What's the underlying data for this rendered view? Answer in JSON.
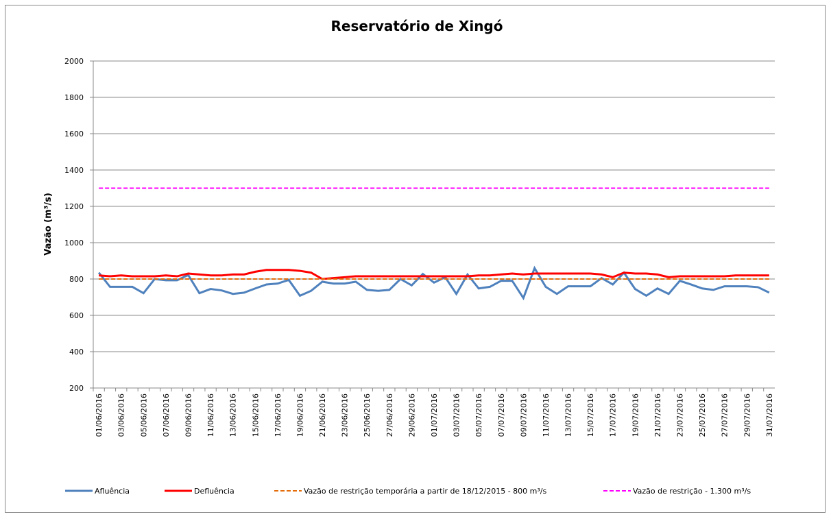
{
  "chart_data": {
    "type": "line",
    "title": "Reservatório de Xingó",
    "ylabel": "Vazão (m³/s)",
    "categories": [
      "01/06/2016",
      null,
      "03/06/2016",
      null,
      "05/06/2016",
      null,
      "07/06/2016",
      null,
      "09/06/2016",
      null,
      "11/06/2016",
      null,
      "13/06/2016",
      null,
      "15/06/2016",
      null,
      "17/06/2016",
      null,
      "19/06/2016",
      null,
      "21/06/2016",
      null,
      "23/06/2016",
      null,
      "25/06/2016",
      null,
      "27/06/2016",
      null,
      "29/06/2016",
      null,
      "01/07/2016",
      null,
      "03/07/2016",
      null,
      "05/07/2016",
      null,
      "07/07/2016",
      null,
      "09/07/2016",
      null,
      "11/07/2016",
      null,
      "13/07/2016",
      null,
      "15/07/2016",
      null,
      "17/07/2016",
      null,
      "19/07/2016",
      null,
      "21/07/2016",
      null,
      "23/07/2016",
      null,
      "25/07/2016",
      null,
      "27/07/2016",
      null,
      "29/07/2016",
      null,
      "31/07/2016"
    ],
    "series": [
      {
        "name": "Afluência",
        "color": "#4f81bd",
        "dashed": false,
        "values": [
          835,
          757,
          757,
          757,
          722,
          800,
          793,
          793,
          822,
          722,
          745,
          737,
          718,
          725,
          748,
          770,
          775,
          795,
          708,
          735,
          785,
          775,
          775,
          785,
          740,
          735,
          740,
          800,
          765,
          828,
          780,
          810,
          718,
          825,
          748,
          757,
          790,
          790,
          695,
          860,
          757,
          718,
          760,
          760,
          760,
          805,
          770,
          835,
          745,
          708,
          748,
          718,
          790,
          770,
          748,
          740,
          760,
          760,
          760,
          755,
          725
        ]
      },
      {
        "name": "Defluência",
        "color": "#ff0000",
        "dashed": false,
        "values": [
          820,
          815,
          820,
          815,
          815,
          815,
          820,
          815,
          830,
          825,
          820,
          820,
          825,
          825,
          840,
          850,
          850,
          850,
          845,
          835,
          800,
          805,
          810,
          815,
          815,
          815,
          815,
          815,
          815,
          815,
          815,
          815,
          815,
          815,
          820,
          820,
          825,
          830,
          825,
          830,
          830,
          830,
          830,
          830,
          830,
          825,
          810,
          835,
          830,
          830,
          825,
          810,
          815,
          815,
          815,
          815,
          815,
          820,
          820,
          820,
          820
        ]
      },
      {
        "name": "Vazão de restrição temporária a partir de 18/12/2015 - 800 m³/s",
        "color": "#e46c0a",
        "dashed": true,
        "values": [
          800,
          800,
          800,
          800,
          800,
          800,
          800,
          800,
          800,
          800,
          800,
          800,
          800,
          800,
          800,
          800,
          800,
          800,
          800,
          800,
          800,
          800,
          800,
          800,
          800,
          800,
          800,
          800,
          800,
          800,
          800,
          800,
          800,
          800,
          800,
          800,
          800,
          800,
          800,
          800,
          800,
          800,
          800,
          800,
          800,
          800,
          800,
          800,
          800,
          800,
          800,
          800,
          800,
          800,
          800,
          800,
          800,
          800,
          800,
          800,
          800
        ]
      },
      {
        "name": "Vazão de restrição - 1.300 m³/s",
        "color": "#ff00ff",
        "dashed": true,
        "values": [
          1300,
          1300,
          1300,
          1300,
          1300,
          1300,
          1300,
          1300,
          1300,
          1300,
          1300,
          1300,
          1300,
          1300,
          1300,
          1300,
          1300,
          1300,
          1300,
          1300,
          1300,
          1300,
          1300,
          1300,
          1300,
          1300,
          1300,
          1300,
          1300,
          1300,
          1300,
          1300,
          1300,
          1300,
          1300,
          1300,
          1300,
          1300,
          1300,
          1300,
          1300,
          1300,
          1300,
          1300,
          1300,
          1300,
          1300,
          1300,
          1300,
          1300,
          1300,
          1300,
          1300,
          1300,
          1300,
          1300,
          1300,
          1300,
          1300,
          1300,
          1300
        ]
      }
    ],
    "ylim": [
      200,
      2000
    ],
    "yticks": [
      200,
      400,
      600,
      800,
      1000,
      1200,
      1400,
      1600,
      1800,
      2000
    ],
    "grid": true,
    "legend": "bottom"
  }
}
